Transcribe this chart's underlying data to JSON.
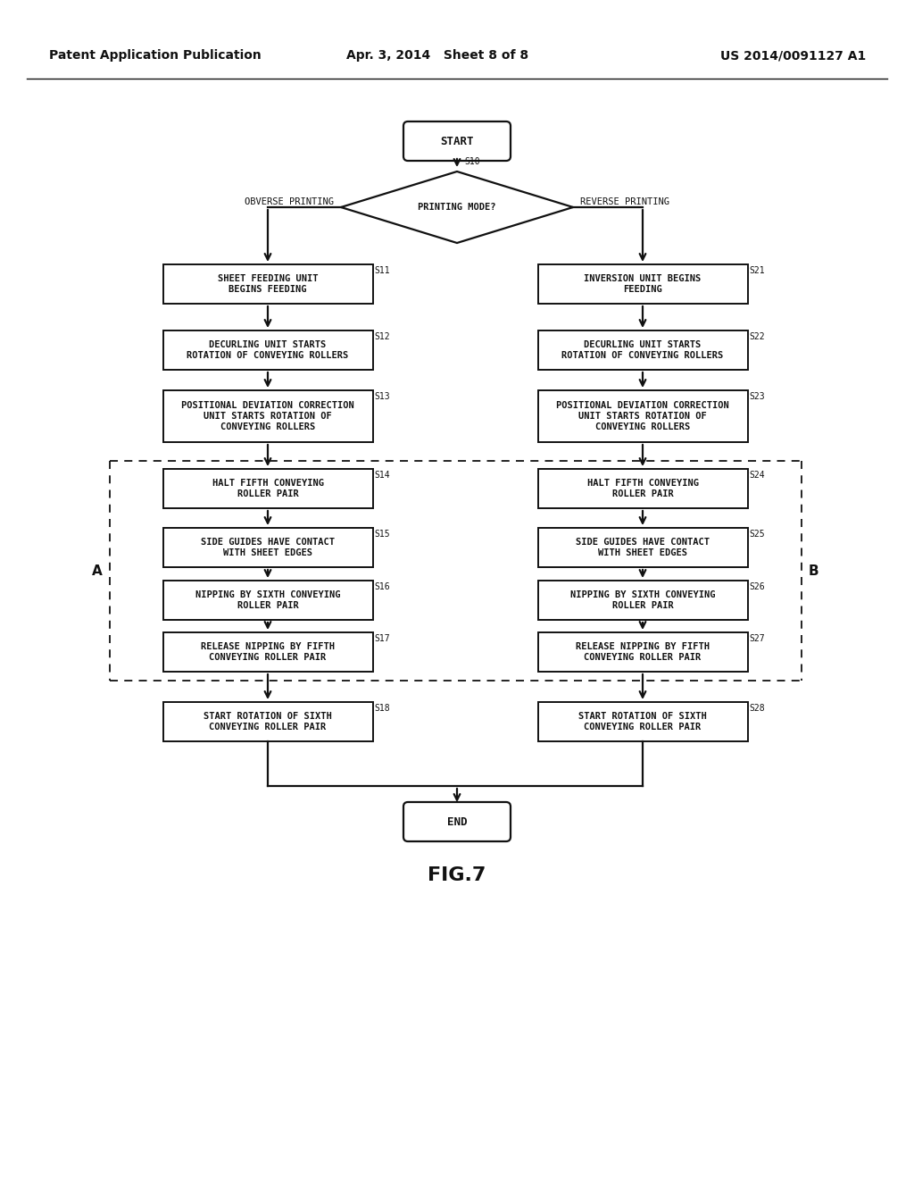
{
  "bg_color": "#ffffff",
  "text_color": "#111111",
  "header_left": "Patent Application Publication",
  "header_mid": "Apr. 3, 2014   Sheet 8 of 8",
  "header_right": "US 2014/0091127 A1",
  "fig_label": "FIG.7",
  "start_label": "START",
  "end_label": "END",
  "diamond_label": "PRINTING MODE?",
  "diamond_step": "S10",
  "left_branch_label": "OBVERSE PRINTING",
  "right_branch_label": "REVERSE PRINTING",
  "steps_left": [
    {
      "step": "S11",
      "text": "SHEET FEEDING UNIT\nBEGINS FEEDING"
    },
    {
      "step": "S12",
      "text": "DECURLING UNIT STARTS\nROTATION OF CONVEYING ROLLERS"
    },
    {
      "step": "S13",
      "text": "POSITIONAL DEVIATION CORRECTION\nUNIT STARTS ROTATION OF\nCONVEYING ROLLERS"
    },
    {
      "step": "S14",
      "text": "HALT FIFTH CONVEYING\nROLLER PAIR"
    },
    {
      "step": "S15",
      "text": "SIDE GUIDES HAVE CONTACT\nWITH SHEET EDGES"
    },
    {
      "step": "S16",
      "text": "NIPPING BY SIXTH CONVEYING\nROLLER PAIR"
    },
    {
      "step": "S17",
      "text": "RELEASE NIPPING BY FIFTH\nCONVEYING ROLLER PAIR"
    },
    {
      "step": "S18",
      "text": "START ROTATION OF SIXTH\nCONVEYING ROLLER PAIR"
    }
  ],
  "steps_right": [
    {
      "step": "S21",
      "text": "INVERSION UNIT BEGINS\nFEEDING"
    },
    {
      "step": "S22",
      "text": "DECURLING UNIT STARTS\nROTATION OF CONVEYING ROLLERS"
    },
    {
      "step": "S23",
      "text": "POSITIONAL DEVIATION CORRECTION\nUNIT STARTS ROTATION OF\nCONVEYING ROLLERS"
    },
    {
      "step": "S24",
      "text": "HALT FIFTH CONVEYING\nROLLER PAIR"
    },
    {
      "step": "S25",
      "text": "SIDE GUIDES HAVE CONTACT\nWITH SHEET EDGES"
    },
    {
      "step": "S26",
      "text": "NIPPING BY SIXTH CONVEYING\nROLLER PAIR"
    },
    {
      "step": "S27",
      "text": "RELEASE NIPPING BY FIFTH\nCONVEYING ROLLER PAIR"
    },
    {
      "step": "S28",
      "text": "START ROTATION OF SIXTH\nCONVEYING ROLLER PAIR"
    }
  ]
}
